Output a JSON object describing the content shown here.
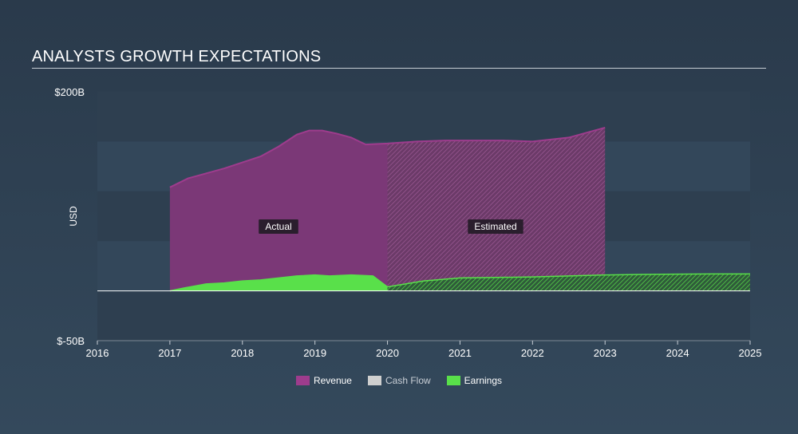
{
  "title": "ANALYSTS GROWTH EXPECTATIONS",
  "chart_data": {
    "type": "area",
    "ylabel": "USD",
    "ylim": [
      -50,
      200
    ],
    "xlim": [
      2016,
      2025
    ],
    "y_tick_labels": [
      {
        "value": 200,
        "label": "$200B"
      },
      {
        "value": -50,
        "label": "$-50B"
      }
    ],
    "x_ticks": [
      2016,
      2017,
      2018,
      2019,
      2020,
      2021,
      2022,
      2023,
      2024,
      2025
    ],
    "estimate_start": 2020,
    "annotations": {
      "actual": "Actual",
      "estimated": "Estimated"
    },
    "colors": {
      "revenue": "#9e3c8d",
      "cash_flow": "#cfcfcf",
      "earnings": "#59e04a",
      "zero_line": "#ffffff"
    },
    "series": [
      {
        "name": "Revenue",
        "key": "revenue",
        "points": [
          [
            2017,
            104
          ],
          [
            2017.25,
            113
          ],
          [
            2017.5,
            118
          ],
          [
            2017.75,
            123
          ],
          [
            2018,
            129
          ],
          [
            2018.25,
            135
          ],
          [
            2018.5,
            145
          ],
          [
            2018.75,
            157
          ],
          [
            2018.92,
            161
          ],
          [
            2019.1,
            161
          ],
          [
            2019.3,
            158
          ],
          [
            2019.5,
            154
          ],
          [
            2019.7,
            147
          ],
          [
            2020,
            148
          ],
          [
            2020.4,
            150
          ],
          [
            2020.8,
            151
          ],
          [
            2021.2,
            151
          ],
          [
            2021.6,
            151
          ],
          [
            2022,
            150
          ],
          [
            2022.5,
            154
          ],
          [
            2023,
            164
          ]
        ]
      },
      {
        "name": "Cash Flow",
        "key": "cash_flow",
        "points": []
      },
      {
        "name": "Earnings",
        "key": "earnings",
        "points": [
          [
            2017,
            0
          ],
          [
            2017.2,
            3
          ],
          [
            2017.5,
            7
          ],
          [
            2017.75,
            8
          ],
          [
            2018,
            10
          ],
          [
            2018.25,
            11
          ],
          [
            2018.5,
            13
          ],
          [
            2018.75,
            15
          ],
          [
            2019,
            16
          ],
          [
            2019.2,
            15
          ],
          [
            2019.5,
            16
          ],
          [
            2019.8,
            15
          ],
          [
            2020,
            4
          ],
          [
            2020.5,
            10
          ],
          [
            2021,
            13
          ],
          [
            2021.5,
            13.5
          ],
          [
            2022,
            14
          ],
          [
            2022.5,
            15
          ],
          [
            2023,
            16
          ],
          [
            2023.5,
            16.5
          ],
          [
            2024,
            16.8
          ],
          [
            2024.5,
            17
          ],
          [
            2025,
            17
          ]
        ]
      }
    ],
    "legend": [
      "Revenue",
      "Cash Flow",
      "Earnings"
    ]
  }
}
